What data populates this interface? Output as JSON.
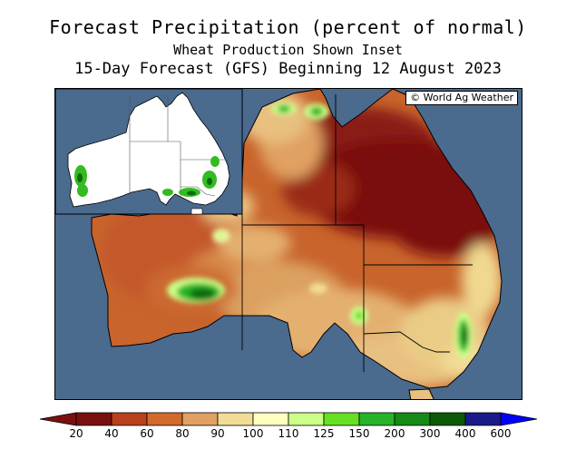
{
  "header": {
    "title": "Forecast Precipitation (percent of normal)",
    "subtitle": "Wheat Production Shown Inset",
    "forecast_line": "15-Day Forecast (GFS) Beginning 12 August 2023"
  },
  "map": {
    "credit": "© World Ag Weather",
    "region": "Australia",
    "colors": {
      "ocean": "#4a6a8e",
      "land_white": "#ffffff",
      "wheat_green": "#33bb22"
    }
  },
  "legend": {
    "ticks": [
      "20",
      "40",
      "60",
      "80",
      "90",
      "100",
      "110",
      "125",
      "150",
      "200",
      "300",
      "400",
      "600"
    ],
    "colors": [
      "#7a1111",
      "#b8401c",
      "#d26a2c",
      "#e0a162",
      "#f2dc96",
      "#ffffc0",
      "#ccff88",
      "#66e022",
      "#28b428",
      "#168a16",
      "#0a5a0a",
      "#1a1a8a",
      "#1a1aff"
    ],
    "ends": {
      "low": "#7a1111",
      "high": "#0000ff"
    }
  }
}
